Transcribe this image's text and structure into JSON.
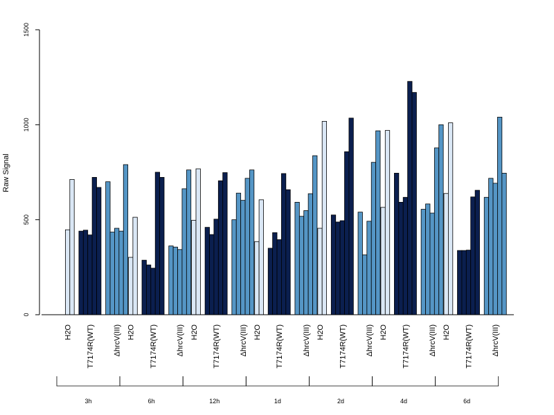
{
  "chart_data": {
    "type": "bar",
    "title": "",
    "xlabel": "",
    "ylabel": "Raw Signal",
    "ylim": [
      0,
      1500
    ],
    "yticks": [
      "0",
      "500",
      "1000",
      "1500"
    ],
    "group_labels": [
      "H2O",
      "T7174R(WT)",
      "ΔhrcV(III)"
    ],
    "time_labels": [
      "3h",
      "6h",
      "12h",
      "1d",
      "2d",
      "4d",
      "6d"
    ],
    "colors": {
      "H2O": "#dbe8f6",
      "T7174R(WT)": "#0b1f4f",
      "ΔhrcV(III)": "#5596c6",
      "edge": "#000000"
    },
    "timepoints": [
      {
        "time": "3h",
        "H2O": [
          0,
          447,
          712
        ],
        "T7174R(WT)": [
          440,
          445,
          420,
          723,
          670
        ],
        "ΔhrcV(III)": [
          700,
          435,
          455,
          440,
          790
        ]
      },
      {
        "time": "6h",
        "H2O": [
          0,
          302,
          513
        ],
        "T7174R(WT)": [
          287,
          262,
          245,
          750,
          723
        ],
        "ΔhrcV(III)": [
          362,
          356,
          343,
          663,
          762
        ]
      },
      {
        "time": "12h",
        "H2O": [
          0,
          497,
          768
        ],
        "T7174R(WT)": [
          460,
          422,
          503,
          705,
          748
        ],
        "ΔhrcV(III)": [
          500,
          640,
          602,
          718,
          762
        ]
      },
      {
        "time": "1d",
        "H2O": [
          0,
          385,
          605
        ],
        "T7174R(WT)": [
          350,
          432,
          395,
          743,
          658
        ],
        "ΔhrcV(III)": [
          592,
          518,
          548,
          637,
          837
        ]
      },
      {
        "time": "2d",
        "H2O": [
          0,
          455,
          1018
        ],
        "T7174R(WT)": [
          525,
          488,
          495,
          858,
          1035
        ],
        "ΔhrcV(III)": [
          540,
          315,
          492,
          802,
          968
        ]
      },
      {
        "time": "4d",
        "H2O": [
          0,
          565,
          970
        ],
        "T7174R(WT)": [
          745,
          592,
          618,
          1228,
          1170
        ],
        "ΔhrcV(III)": [
          555,
          583,
          535,
          878,
          1000
        ]
      },
      {
        "time": "6d",
        "H2O": [
          0,
          638,
          1010
        ],
        "T7174R(WT)": [
          338,
          338,
          340,
          620,
          655
        ],
        "ΔhrcV(III)": [
          618,
          718,
          692,
          1040,
          745
        ]
      }
    ]
  }
}
